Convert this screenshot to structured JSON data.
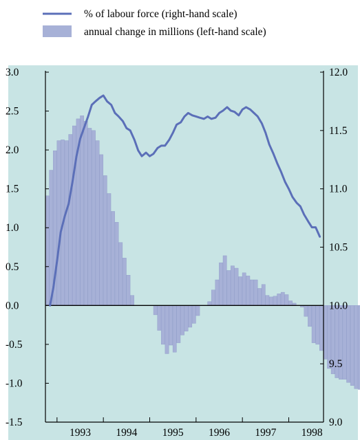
{
  "colors": {
    "background": "#c8e4e4",
    "bar_fill": "#a7b1d7",
    "bar_stroke": "#8e99c7",
    "line": "#5b6fb8",
    "axis": "#000000"
  },
  "chart_data": {
    "type": "bar+line",
    "title": "",
    "legend": {
      "placement": "top",
      "entries": [
        {
          "label": "% of labour force (right-hand scale)",
          "kind": "line"
        },
        {
          "label": "annual change in millions (left-hand scale)",
          "kind": "bar"
        }
      ]
    },
    "grid": false,
    "x_axis": {
      "range": [
        1992.75,
        1998.75
      ],
      "tick_labels": [
        "1993",
        "1994",
        "1995",
        "1996",
        "1997",
        "1998"
      ]
    },
    "left_axis": {
      "ylim": [
        -1.5,
        3.0
      ],
      "tick_labels": [
        "3.0",
        "2.5",
        "2.0",
        "1.5",
        "1.0",
        "0.5",
        "0.0",
        "-0.5",
        "-1.0",
        "-1.5"
      ]
    },
    "right_axis": {
      "ylim": [
        9.0,
        12.0
      ],
      "tick_labels": [
        "12.0",
        "11.5",
        "11.0",
        "10.5",
        "10.0",
        "9.5",
        "9.0"
      ]
    },
    "series": [
      {
        "name": "annual change in millions (left-hand scale)",
        "type": "bar",
        "axis": "left",
        "x_start": 1992.75,
        "period": 0.0833,
        "values": [
          1.41,
          1.74,
          1.99,
          2.12,
          2.13,
          2.12,
          2.2,
          2.31,
          2.4,
          2.44,
          2.37,
          2.28,
          2.25,
          2.12,
          1.94,
          1.67,
          1.44,
          1.21,
          1.07,
          0.81,
          0.61,
          0.39,
          0.13,
          0.0,
          0.0,
          0.0,
          0.0,
          0.0,
          -0.12,
          -0.32,
          -0.5,
          -0.62,
          -0.51,
          -0.6,
          -0.48,
          -0.38,
          -0.33,
          -0.28,
          -0.23,
          -0.13,
          0.0,
          0.0,
          0.05,
          0.2,
          0.33,
          0.55,
          0.64,
          0.45,
          0.51,
          0.48,
          0.37,
          0.42,
          0.38,
          0.33,
          0.33,
          0.22,
          0.27,
          0.13,
          0.11,
          0.12,
          0.15,
          0.17,
          0.14,
          0.06,
          0.03,
          0.0,
          -0.02,
          -0.14,
          -0.27,
          -0.48,
          -0.5,
          -0.58,
          -0.69,
          -0.81,
          -0.88,
          -0.93,
          -0.95,
          -0.95,
          -0.99,
          -1.03,
          -1.07,
          -1.08,
          -1.02,
          -0.96
        ]
      },
      {
        "name": "% of labour force (right-hand scale)",
        "type": "line",
        "axis": "right",
        "points": [
          [
            1992.85,
            10.0
          ],
          [
            1992.92,
            10.15
          ],
          [
            1993.0,
            10.38
          ],
          [
            1993.08,
            10.63
          ],
          [
            1993.17,
            10.77
          ],
          [
            1993.25,
            10.87
          ],
          [
            1993.33,
            11.05
          ],
          [
            1993.42,
            11.28
          ],
          [
            1993.5,
            11.43
          ],
          [
            1993.58,
            11.52
          ],
          [
            1993.67,
            11.62
          ],
          [
            1993.75,
            11.72
          ],
          [
            1993.83,
            11.75
          ],
          [
            1993.92,
            11.78
          ],
          [
            1994.0,
            11.8
          ],
          [
            1994.08,
            11.75
          ],
          [
            1994.17,
            11.72
          ],
          [
            1994.25,
            11.65
          ],
          [
            1994.33,
            11.62
          ],
          [
            1994.42,
            11.58
          ],
          [
            1994.5,
            11.52
          ],
          [
            1994.58,
            11.5
          ],
          [
            1994.67,
            11.42
          ],
          [
            1994.75,
            11.33
          ],
          [
            1994.83,
            11.28
          ],
          [
            1994.92,
            11.31
          ],
          [
            1995.0,
            11.28
          ],
          [
            1995.08,
            11.3
          ],
          [
            1995.17,
            11.35
          ],
          [
            1995.25,
            11.37
          ],
          [
            1995.33,
            11.37
          ],
          [
            1995.42,
            11.42
          ],
          [
            1995.5,
            11.48
          ],
          [
            1995.58,
            11.55
          ],
          [
            1995.67,
            11.57
          ],
          [
            1995.75,
            11.62
          ],
          [
            1995.83,
            11.65
          ],
          [
            1995.92,
            11.63
          ],
          [
            1996.0,
            11.62
          ],
          [
            1996.08,
            11.61
          ],
          [
            1996.17,
            11.6
          ],
          [
            1996.25,
            11.62
          ],
          [
            1996.33,
            11.6
          ],
          [
            1996.42,
            11.61
          ],
          [
            1996.5,
            11.65
          ],
          [
            1996.58,
            11.67
          ],
          [
            1996.67,
            11.7
          ],
          [
            1996.75,
            11.67
          ],
          [
            1996.83,
            11.66
          ],
          [
            1996.92,
            11.63
          ],
          [
            1997.0,
            11.68
          ],
          [
            1997.08,
            11.7
          ],
          [
            1997.17,
            11.68
          ],
          [
            1997.25,
            11.65
          ],
          [
            1997.33,
            11.62
          ],
          [
            1997.42,
            11.56
          ],
          [
            1997.5,
            11.48
          ],
          [
            1997.58,
            11.38
          ],
          [
            1997.67,
            11.3
          ],
          [
            1997.75,
            11.22
          ],
          [
            1997.83,
            11.15
          ],
          [
            1997.92,
            11.06
          ],
          [
            1998.0,
            11.0
          ],
          [
            1998.08,
            10.93
          ],
          [
            1998.17,
            10.88
          ],
          [
            1998.25,
            10.85
          ],
          [
            1998.33,
            10.78
          ],
          [
            1998.42,
            10.72
          ],
          [
            1998.5,
            10.67
          ],
          [
            1998.58,
            10.67
          ],
          [
            1998.67,
            10.59
          ]
        ]
      }
    ]
  }
}
